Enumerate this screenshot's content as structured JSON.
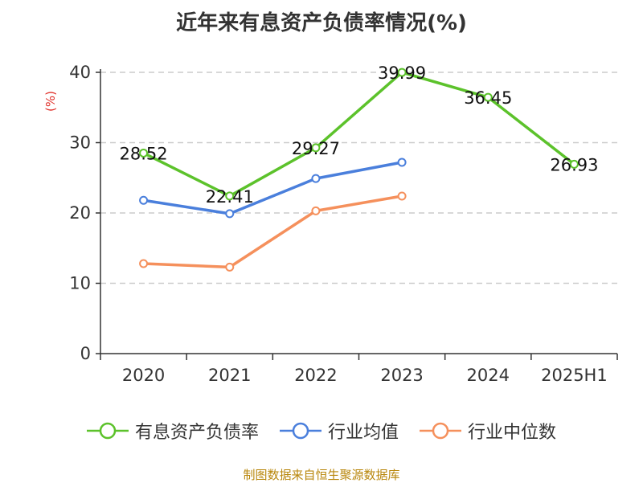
{
  "chart_data": {
    "type": "line",
    "title": "近年来有息资产负债率情况(%)",
    "ylabel": "(%)",
    "categories": [
      "2020",
      "2021",
      "2022",
      "2023",
      "2024",
      "2025H1"
    ],
    "ylim": [
      0,
      40
    ],
    "yticks": [
      0,
      10,
      20,
      30,
      40
    ],
    "grid": true,
    "legend_position": "bottom",
    "series": [
      {
        "name": "有息资产负债率",
        "color": "#5cc22b",
        "values": [
          28.52,
          22.41,
          29.27,
          39.99,
          36.45,
          26.93
        ],
        "labels": [
          "28.52",
          "22.41",
          "29.27",
          "39.99",
          "36.45",
          "26.93"
        ]
      },
      {
        "name": "行业均值",
        "color": "#4a7fdc",
        "values": [
          21.8,
          19.9,
          24.9,
          27.2,
          null,
          null
        ],
        "labels": []
      },
      {
        "name": "行业中位数",
        "color": "#f5905c",
        "values": [
          12.8,
          12.3,
          20.3,
          22.4,
          null,
          null
        ],
        "labels": []
      }
    ]
  },
  "source": "制图数据来自恒生聚源数据库"
}
